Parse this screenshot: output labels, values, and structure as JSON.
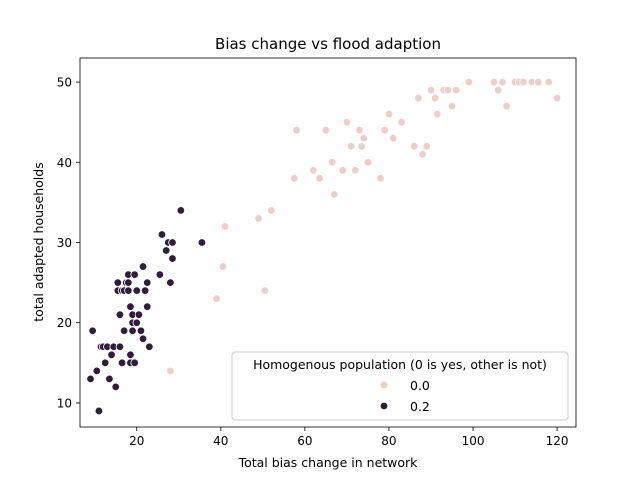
{
  "chart_data": {
    "type": "scatter",
    "title": "Bias change vs flood adaption",
    "xlabel": "Total bias change in network",
    "ylabel": "total adapted households",
    "xlim": [
      6.5,
      124.5
    ],
    "ylim": [
      7,
      53
    ],
    "xticks": [
      20,
      40,
      60,
      80,
      100,
      120
    ],
    "yticks": [
      10,
      20,
      30,
      40,
      50
    ],
    "grid": false,
    "legend": {
      "title": "Homogenous population (0 is yes, other is not)",
      "placement": "lower-right"
    },
    "series": [
      {
        "name": "0.0",
        "color": "#ebcfc8",
        "points": [
          [
            28,
            14
          ],
          [
            39,
            23
          ],
          [
            40.5,
            27
          ],
          [
            41,
            32
          ],
          [
            49,
            33
          ],
          [
            50.5,
            24
          ],
          [
            52,
            34
          ],
          [
            57.5,
            38
          ],
          [
            58,
            44
          ],
          [
            62,
            39
          ],
          [
            63.5,
            38
          ],
          [
            65,
            44
          ],
          [
            66.5,
            40
          ],
          [
            67,
            36
          ],
          [
            69,
            39
          ],
          [
            70,
            45
          ],
          [
            71,
            42
          ],
          [
            72,
            39
          ],
          [
            73,
            44
          ],
          [
            73.5,
            42
          ],
          [
            74,
            43
          ],
          [
            75,
            40
          ],
          [
            78,
            38
          ],
          [
            79,
            44
          ],
          [
            80,
            46
          ],
          [
            81,
            43
          ],
          [
            83,
            45
          ],
          [
            86,
            42
          ],
          [
            87,
            48
          ],
          [
            88,
            41
          ],
          [
            89,
            42
          ],
          [
            90,
            49
          ],
          [
            91,
            48
          ],
          [
            91.5,
            46
          ],
          [
            93,
            49
          ],
          [
            94,
            49
          ],
          [
            95,
            47
          ],
          [
            96,
            49
          ],
          [
            99,
            50
          ],
          [
            105,
            50
          ],
          [
            106,
            49
          ],
          [
            107,
            50
          ],
          [
            108,
            47
          ],
          [
            110,
            50
          ],
          [
            111,
            50
          ],
          [
            112,
            50
          ],
          [
            114,
            50
          ],
          [
            115.5,
            50
          ],
          [
            118,
            50
          ],
          [
            120,
            48
          ]
        ]
      },
      {
        "name": "0.2",
        "color": "#2e1e3b",
        "points": [
          [
            9,
            13
          ],
          [
            9.5,
            19
          ],
          [
            10.5,
            14
          ],
          [
            11,
            9
          ],
          [
            11.5,
            17
          ],
          [
            12,
            17
          ],
          [
            12.5,
            15
          ],
          [
            13,
            17
          ],
          [
            13.5,
            13
          ],
          [
            14,
            16
          ],
          [
            14.5,
            17
          ],
          [
            15,
            12
          ],
          [
            15.5,
            24
          ],
          [
            15.5,
            25
          ],
          [
            16,
            21
          ],
          [
            16,
            17
          ],
          [
            16.5,
            15
          ],
          [
            16.5,
            24
          ],
          [
            17,
            19
          ],
          [
            17,
            24
          ],
          [
            17.5,
            25
          ],
          [
            18,
            26
          ],
          [
            18,
            24
          ],
          [
            18,
            25
          ],
          [
            18.5,
            22
          ],
          [
            18.5,
            15
          ],
          [
            18.5,
            16
          ],
          [
            19,
            19
          ],
          [
            19,
            20
          ],
          [
            19,
            21
          ],
          [
            19.5,
            26
          ],
          [
            19.5,
            15
          ],
          [
            20,
            20
          ],
          [
            20,
            24
          ],
          [
            20.5,
            21
          ],
          [
            21,
            19
          ],
          [
            21.5,
            18
          ],
          [
            21.5,
            27
          ],
          [
            22,
            24
          ],
          [
            22.5,
            22
          ],
          [
            22.5,
            25
          ],
          [
            23,
            17
          ],
          [
            25.5,
            26
          ],
          [
            26,
            31
          ],
          [
            27,
            29
          ],
          [
            27.5,
            30
          ],
          [
            28,
            25
          ],
          [
            28.5,
            28
          ],
          [
            28.5,
            30
          ],
          [
            30.5,
            34
          ],
          [
            35.5,
            30
          ]
        ]
      }
    ]
  }
}
